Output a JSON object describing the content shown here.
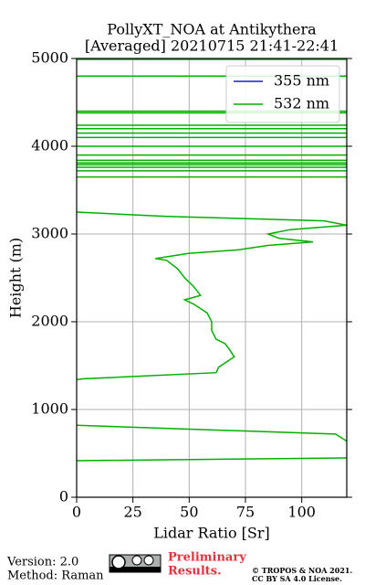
{
  "chart_data": {
    "type": "line",
    "title": "PollyXT_NOA at Antikythera",
    "subtitle": "[Averaged] 20210715 21:41-22:41",
    "x_label": "Lidar Ratio [Sr]",
    "y_label": "Height (m)",
    "xlim": [
      0,
      120
    ],
    "xticks": [
      0,
      25,
      50,
      75,
      100
    ],
    "ylim": [
      0,
      5000
    ],
    "yticks": [
      0,
      1000,
      2000,
      3000,
      4000,
      5000
    ],
    "grid": true,
    "legend": "upper right",
    "series": [
      {
        "name": "355 nm",
        "color": "#1f1fd0",
        "x": [],
        "y": []
      },
      {
        "name": "532 nm",
        "color": "#00b000",
        "x": [
          0,
          120,
          null,
          0,
          115,
          120,
          null,
          0,
          3,
          62,
          63,
          67,
          70,
          68,
          66,
          62,
          60,
          60,
          58,
          52,
          48,
          55,
          52,
          48,
          45,
          40,
          35,
          50,
          72,
          85,
          105,
          90,
          85,
          95,
          120,
          110,
          40,
          0,
          null,
          0,
          120,
          null,
          0,
          120,
          null,
          0,
          120,
          null,
          0,
          120,
          null,
          0,
          120,
          null,
          0,
          120,
          null,
          0,
          120,
          null,
          0,
          120,
          null,
          0,
          120,
          null,
          0,
          120,
          null,
          0,
          120,
          null,
          0,
          120,
          null,
          0,
          120,
          null,
          0,
          120,
          null,
          0,
          120,
          null,
          0,
          120
        ],
        "y": [
          417,
          448,
          null,
          820,
          720,
          640,
          null,
          1340,
          1350,
          1420,
          1480,
          1550,
          1600,
          1680,
          1750,
          1800,
          1900,
          2000,
          2100,
          2200,
          2250,
          2300,
          2400,
          2500,
          2600,
          2700,
          2720,
          2780,
          2820,
          2870,
          2910,
          2950,
          3000,
          3050,
          3100,
          3150,
          3200,
          3250,
          null,
          3650,
          3650,
          null,
          3720,
          3720,
          null,
          3760,
          3760,
          null,
          3790,
          3790,
          null,
          3810,
          3810,
          null,
          3840,
          3840,
          null,
          3900,
          3900,
          null,
          4000,
          4000,
          null,
          4100,
          4100,
          null,
          4150,
          4150,
          null,
          4200,
          4200,
          null,
          4240,
          4240,
          null,
          4380,
          4380,
          null,
          4400,
          4400,
          null,
          4800,
          4800,
          null,
          4990,
          4990
        ]
      }
    ]
  },
  "footer": {
    "version": "Version: 2.0",
    "method": "Method: Raman",
    "preliminary": [
      "Preliminary",
      "Results."
    ],
    "copyright": [
      "© TROPOS & NOA 2021.",
      "CC BY SA 4.0 License."
    ]
  }
}
